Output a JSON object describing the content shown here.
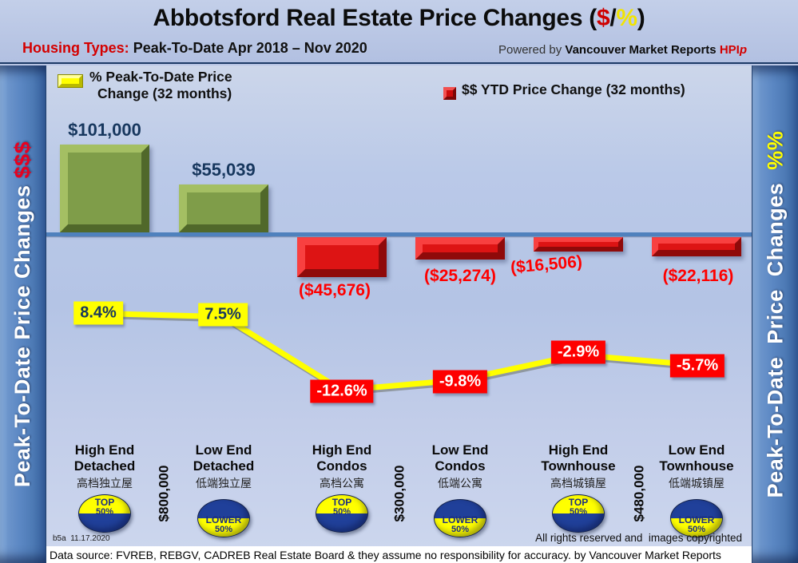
{
  "header": {
    "title_main": "Abbotsford Real Estate Price Changes (",
    "title_dollar": "$",
    "title_slash": "/",
    "title_percent": "%",
    "title_close": ")",
    "subtitle_label": "Housing Types:",
    "subtitle_rest": " Peak-To-Date Apr 2018 – Nov 2020",
    "powered_prefix": "Powered by ",
    "powered_brand": "Vancouver Market Reports ",
    "powered_hpi": "HPI",
    "powered_hpi_p": "p"
  },
  "legend": {
    "pct_line1": "% Peak-To-Date Price",
    "pct_line2": "Change (32 months)",
    "usd_label": "$$ YTD Price Change (32 months)"
  },
  "sidebars": {
    "left_text": "Peak-To-Date Price Changes ",
    "left_suffix": "$$$",
    "right_text": "Peak-To-Date  Price  Changes  ",
    "right_suffix": "%%"
  },
  "chart_data": {
    "type": "bar",
    "subtype": "combo-bar-line",
    "title": "Abbotsford Real Estate Price Changes ($/%)",
    "period": "Peak-To-Date Apr 2018 – Nov 2020",
    "zero_line": true,
    "legend_position": "top",
    "categories": [
      "High End Detached",
      "Low End Detached",
      "High End Condos",
      "Low End Condos",
      "High End Townhouse",
      "Low End Townhouse"
    ],
    "categories_zh": [
      "高档独立屋",
      "低端独立屋",
      "高档公寓",
      "低端公寓",
      "高档城镇屋",
      "低端城镇屋"
    ],
    "series": [
      {
        "name": "$$ YTD Price Change (32 months)",
        "type": "bar",
        "values": [
          101000,
          55039,
          -45676,
          -25274,
          -16506,
          -22116
        ],
        "labels": [
          "$101,000",
          "$55,039",
          "($45,676)",
          "($25,274)",
          "($16,506)",
          "($22,116)"
        ],
        "positive_color": "#7f9d49",
        "negative_color": "#dd1414"
      },
      {
        "name": "% Peak-To-Date Price Change (32 months)",
        "type": "line",
        "values": [
          8.4,
          7.5,
          -12.6,
          -9.8,
          -2.9,
          -5.7
        ],
        "labels": [
          "8.4%",
          "7.5%",
          "-12.6%",
          "-9.8%",
          "-2.9%",
          "-5.7%"
        ],
        "color": "#ffff00"
      }
    ],
    "segment_thresholds": [
      {
        "between": [
          "High End Detached",
          "Low End Detached"
        ],
        "label": "$800,000"
      },
      {
        "between": [
          "High End Condos",
          "Low End Condos"
        ],
        "label": "$300,000"
      },
      {
        "between": [
          "High End Townhouse",
          "Low End Townhouse"
        ],
        "label": "$480,000"
      }
    ]
  },
  "categories": [
    {
      "line1": "High End",
      "line2": "Detached",
      "zh": "高档独立屋",
      "badge": {
        "type": "top",
        "line1": "TOP",
        "line2": "50%"
      }
    },
    {
      "line1": "Low End",
      "line2": "Detached",
      "zh": "低端独立屋",
      "badge": {
        "type": "lower",
        "line1": "LOWER",
        "line2": "50%"
      }
    },
    {
      "line1": "High End",
      "line2": "Condos",
      "zh": "高档公寓",
      "badge": {
        "type": "top",
        "line1": "TOP",
        "line2": "50%"
      }
    },
    {
      "line1": "Low End",
      "line2": "Condos",
      "zh": "低端公寓",
      "badge": {
        "type": "lower",
        "line1": "LOWER",
        "line2": "50%"
      }
    },
    {
      "line1": "High End",
      "line2": "Townhouse",
      "zh": "高档城镇屋",
      "badge": {
        "type": "top",
        "line1": "TOP",
        "line2": "50%"
      }
    },
    {
      "line1": "Low End",
      "line2": "Townhouse",
      "zh": "低端城镇屋",
      "badge": {
        "type": "lower",
        "line1": "LOWER",
        "line2": "50%"
      }
    }
  ],
  "footer": {
    "version": "b5a  11.17.2020",
    "rights": "All rights reserved and  images copyrighted",
    "datasource": "Data source: FVREB, REBGV, CADREB Real Estate Board & they assume no responsibility for accuracy. by Vancouver Market Reports"
  },
  "colors": {
    "accent_red": "#d40000",
    "accent_yellow": "#ffff00",
    "navy_text": "#17375e",
    "zero_line": "#4f81bd",
    "sidebar_blue": "#5b87c3"
  }
}
